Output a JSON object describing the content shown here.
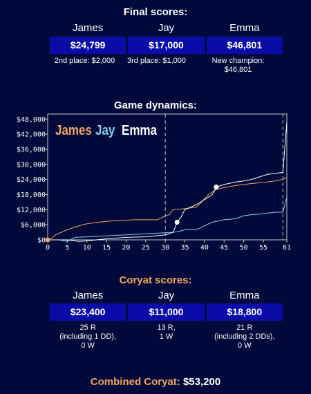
{
  "final": {
    "title": "Final scores:",
    "players": [
      {
        "name": "James",
        "score": "$24,799",
        "note": "2nd place: $2,000"
      },
      {
        "name": "Jay",
        "score": "$17,000",
        "note": "3rd place: $1,000"
      },
      {
        "name": "Emma",
        "score": "$46,801",
        "note": "New champion: $46,801"
      }
    ]
  },
  "dynamics_title": "Game dynamics:",
  "chart_data": {
    "type": "line",
    "x_ticks": [
      0,
      5,
      10,
      15,
      20,
      25,
      30,
      35,
      40,
      45,
      50,
      55,
      61
    ],
    "y_ticks": [
      "$0",
      "$6,000",
      "$12,000",
      "$18,000",
      "$24,000",
      "$30,000",
      "$36,000",
      "$42,000",
      "$48,000"
    ],
    "xlim": [
      0,
      61
    ],
    "ylim": [
      0,
      50000
    ],
    "vlines": [
      30,
      60
    ],
    "legend_placement": "top-left",
    "series": [
      {
        "name": "James",
        "color": "#f4a460",
        "x": [
          0,
          1,
          2,
          5,
          8,
          10,
          13,
          15,
          18,
          20,
          22,
          25,
          28,
          30,
          31,
          32,
          35,
          38,
          41,
          43,
          45,
          48,
          50,
          52,
          55,
          58,
          60,
          61
        ],
        "y": [
          0,
          600,
          2000,
          4000,
          5600,
          6400,
          7000,
          7400,
          7600,
          7800,
          8000,
          8000,
          8000,
          9500,
          10000,
          12000,
          12400,
          13000,
          18000,
          20000,
          20800,
          21600,
          22000,
          22400,
          22800,
          23400,
          24000,
          24799
        ]
      },
      {
        "name": "Jay",
        "color": "#87ceeb",
        "x": [
          0,
          3,
          5,
          7,
          10,
          15,
          20,
          25,
          30,
          33,
          35,
          38,
          40,
          42,
          45,
          48,
          50,
          52,
          55,
          58,
          60,
          61
        ],
        "y": [
          0,
          0,
          -600,
          1000,
          1200,
          1600,
          2000,
          2400,
          2800,
          3200,
          4000,
          4000,
          5600,
          7000,
          8000,
          8400,
          9600,
          10000,
          10400,
          11000,
          11000,
          17000
        ]
      },
      {
        "name": "Emma",
        "color": "#ffffff",
        "x": [
          0,
          5,
          8,
          10,
          15,
          20,
          25,
          30,
          32,
          33,
          34,
          35,
          38,
          40,
          42,
          43,
          45,
          48,
          50,
          52,
          54,
          56,
          58,
          60,
          61
        ],
        "y": [
          0,
          0,
          -600,
          -400,
          400,
          1000,
          1200,
          2000,
          3000,
          7000,
          9000,
          12000,
          14000,
          16000,
          18000,
          21000,
          22000,
          23000,
          23400,
          24000,
          25000,
          26000,
          26400,
          26800,
          46801
        ]
      }
    ],
    "markers": [
      {
        "x": 0,
        "y": 0,
        "color": "#f4a460"
      },
      {
        "x": 33,
        "y": 7000,
        "color": "#ffffff"
      },
      {
        "x": 43,
        "y": 21000,
        "color": "#ffffff"
      }
    ]
  },
  "coryat": {
    "title": "Coryat scores:",
    "players": [
      {
        "name": "James",
        "score": "$23,400",
        "note_line1": "25 R",
        "note_line2": "(including 1 DD),",
        "note_line3": "0 W"
      },
      {
        "name": "Jay",
        "score": "$11,000",
        "note_line1": "13 R,",
        "note_line2": "1 W",
        "note_line3": ""
      },
      {
        "name": "Emma",
        "score": "$18,800",
        "note_line1": "21 R",
        "note_line2": "(including 2 DDs),",
        "note_line3": "0 W"
      }
    ]
  },
  "combined": {
    "label": "Combined Coryat:",
    "value": "$53,200"
  }
}
